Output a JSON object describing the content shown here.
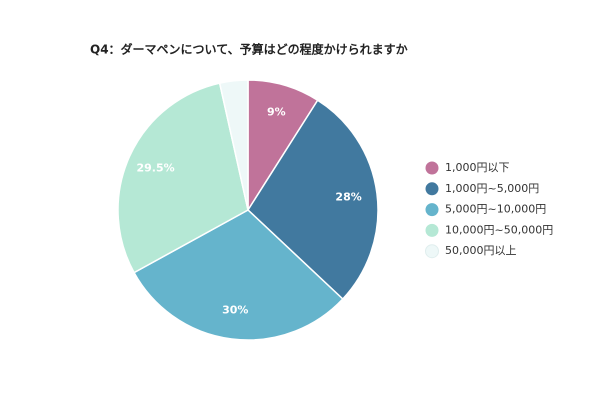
{
  "chart_data": {
    "type": "pie",
    "title": "Q4：ダーマペンについて、予算はどの程度かけられますか",
    "categories": [
      "1,000円以下",
      "1,000円~5,000円",
      "5,000円~10,000円",
      "10,000円~50,000円",
      "50,000円以上"
    ],
    "values": [
      9,
      28,
      30,
      29.5,
      3.5
    ],
    "value_labels": [
      "9%",
      "28%",
      "30%",
      "29.5%",
      null
    ],
    "colors": [
      "#c0739a",
      "#41799f",
      "#65b4cc",
      "#b5e8d5",
      "#eef8f8"
    ],
    "legend": "right"
  }
}
